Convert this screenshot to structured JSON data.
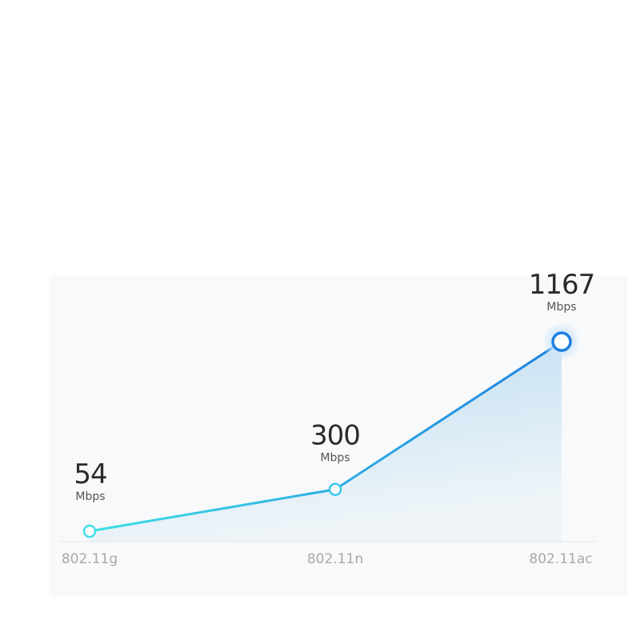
{
  "chart_data": {
    "type": "area",
    "categories": [
      "802.11g",
      "802.11n",
      "802.11ac"
    ],
    "values": [
      54,
      300,
      1167
    ],
    "data_labels": [
      "54",
      "300",
      "1167"
    ],
    "unit": "Mbps",
    "title": "",
    "xlabel": "",
    "ylabel": "",
    "grid": false,
    "colors": {
      "line_start": "#3ee0e6",
      "line_end": "#1e7fe0",
      "fill": "#b8dbf0",
      "label": "#2a2a2a",
      "category": "#a8a8a8"
    }
  }
}
